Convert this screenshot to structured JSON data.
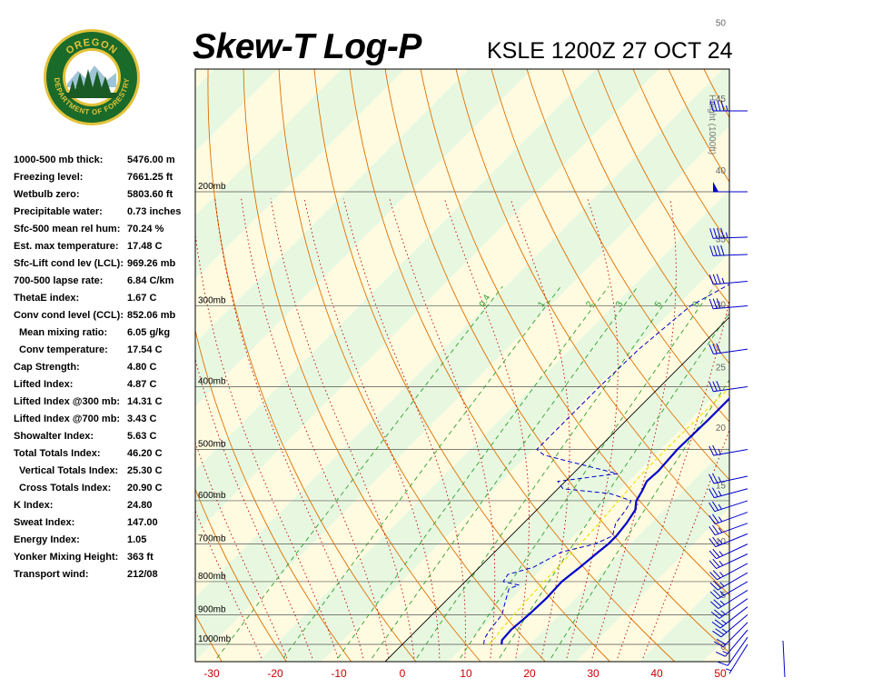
{
  "header": {
    "title": "Skew-T Log-P",
    "station": "KSLE 1200Z 27 OCT 24"
  },
  "logo": {
    "top_text": "OREGON",
    "bottom_text": "DEPARTMENT OF FORESTRY",
    "colors": {
      "ring": "#1a6b2a",
      "gold": "#e2c23a",
      "tree": "#1a5a24"
    }
  },
  "indices": [
    {
      "label": "1000-500 mb thick:",
      "value": "5476.00 m",
      "indent": false
    },
    {
      "label": "Freezing level:",
      "value": "7661.25 ft",
      "indent": false
    },
    {
      "label": "Wetbulb zero:",
      "value": "5803.60 ft",
      "indent": false
    },
    {
      "label": "Precipitable water:",
      "value": "0.73 inches",
      "indent": false
    },
    {
      "label": "Sfc-500 mean rel hum:",
      "value": "70.24 %",
      "indent": false
    },
    {
      "label": "Est. max temperature:",
      "value": "17.48 C",
      "indent": false
    },
    {
      "label": "Sfc-Lift cond lev (LCL):",
      "value": "969.26 mb",
      "indent": false
    },
    {
      "label": "700-500 lapse rate:",
      "value": "6.84 C/km",
      "indent": false
    },
    {
      "label": "ThetaE index:",
      "value": "1.67 C",
      "indent": false
    },
    {
      "label": "Conv cond level (CCL):",
      "value": "852.06 mb",
      "indent": false
    },
    {
      "label": "Mean mixing ratio:",
      "value": "6.05 g/kg",
      "indent": true
    },
    {
      "label": "Conv temperature:",
      "value": "17.54 C",
      "indent": true
    },
    {
      "label": "Cap Strength:",
      "value": "4.80 C",
      "indent": false
    },
    {
      "label": "Lifted Index:",
      "value": "4.87 C",
      "indent": false
    },
    {
      "label": "Lifted Index @300 mb:",
      "value": "14.31 C",
      "indent": false
    },
    {
      "label": "Lifted Index @700 mb:",
      "value": "3.43 C",
      "indent": false
    },
    {
      "label": "Showalter Index:",
      "value": "5.63 C",
      "indent": false
    },
    {
      "label": "Total Totals Index:",
      "value": "46.20 C",
      "indent": false
    },
    {
      "label": "Vertical Totals Index:",
      "value": "25.30 C",
      "indent": true
    },
    {
      "label": "Cross Totals Index:",
      "value": "20.90 C",
      "indent": true
    },
    {
      "label": "K Index:",
      "value": "24.80",
      "indent": false
    },
    {
      "label": "Sweat Index:",
      "value": "147.00",
      "indent": false
    },
    {
      "label": "Energy Index:",
      "value": "1.05",
      "indent": false
    },
    {
      "label": "Yonker Mixing Height:",
      "value": "363 ft",
      "indent": false
    },
    {
      "label": "Transport wind:",
      "value": "212/08",
      "indent": false
    }
  ],
  "chart_data": {
    "type": "line",
    "xlabel": "",
    "ylabel": "",
    "x_ticks": [
      -30,
      -20,
      -10,
      0,
      10,
      20,
      30,
      40,
      50
    ],
    "pressure_labels": [
      {
        "p": 1000,
        "label": "1000mb"
      },
      {
        "p": 900,
        "label": "900mb"
      },
      {
        "p": 800,
        "label": "800mb"
      },
      {
        "p": 700,
        "label": "700mb"
      },
      {
        "p": 600,
        "label": "600mb"
      },
      {
        "p": 500,
        "label": "500mb"
      },
      {
        "p": 400,
        "label": "400mb"
      },
      {
        "p": 300,
        "label": "300mb"
      },
      {
        "p": 200,
        "label": "200mb"
      }
    ],
    "height_axis_label": "Height (1000ft)",
    "height_ticks": [
      0,
      5,
      10,
      15,
      20,
      25,
      30,
      35,
      40,
      45,
      50
    ],
    "mixing_ratio_labels": [
      "0.4",
      "1",
      "2",
      "3",
      "5",
      "8"
    ],
    "colors": {
      "temperature": "#0000cc",
      "dewpoint": "#0000cc",
      "parcel": "#e6e600",
      "dry_adiabat": "#e07000",
      "moist_adiabat": "#c00000",
      "mixing_ratio": "#2ca02c",
      "isobar": "#555555",
      "tick_label": "#cc0000",
      "band_yellow": "#fffbe0",
      "band_green": "#e8f8e0"
    },
    "series": [
      {
        "key": "temperature",
        "points": [
          [
            1000,
            15.6
          ],
          [
            985,
            15.0
          ],
          [
            950,
            14.8
          ],
          [
            925,
            15.0
          ],
          [
            900,
            15.2
          ],
          [
            850,
            15.4
          ],
          [
            800,
            15.2
          ],
          [
            760,
            15.8
          ],
          [
            720,
            16.3
          ],
          [
            700,
            16.6
          ],
          [
            680,
            16.6
          ],
          [
            650,
            16.2
          ],
          [
            620,
            15.5
          ],
          [
            600,
            14.2
          ],
          [
            580,
            13.6
          ],
          [
            560,
            12.8
          ],
          [
            540,
            13.0
          ],
          [
            500,
            12.6
          ],
          [
            450,
            12.8
          ],
          [
            400,
            12.8
          ],
          [
            350,
            12.6
          ],
          [
            300,
            12.4
          ],
          [
            250,
            13.8
          ],
          [
            220,
            15.5
          ],
          [
            200,
            22.7
          ],
          [
            180,
            28.4
          ],
          [
            170,
            34.4
          ]
        ]
      },
      {
        "key": "dewpoint",
        "points": [
          [
            1000,
            12.8
          ],
          [
            980,
            12.0
          ],
          [
            950,
            11.5
          ],
          [
            920,
            11.2
          ],
          [
            900,
            11.0
          ],
          [
            860,
            9.5
          ],
          [
            820,
            8.0
          ],
          [
            810,
            9.0
          ],
          [
            800,
            6.0
          ],
          [
            780,
            5.6
          ],
          [
            760,
            8.5
          ],
          [
            720,
            10.5
          ],
          [
            700,
            14.5
          ],
          [
            680,
            16.0
          ],
          [
            650,
            14.5
          ],
          [
            620,
            14.0
          ],
          [
            600,
            13.4
          ],
          [
            585,
            9.0
          ],
          [
            575,
            0.8
          ],
          [
            560,
            -1.2
          ],
          [
            545,
            7.0
          ],
          [
            510,
            -7.5
          ],
          [
            500,
            -9.5
          ],
          [
            450,
            -9.5
          ],
          [
            400,
            -9.5
          ],
          [
            350,
            -9.2
          ],
          [
            300,
            -7.9
          ],
          [
            260,
            -2.8
          ],
          [
            240,
            -5.0
          ],
          [
            200,
            -4.5
          ],
          [
            180,
            1.2
          ],
          [
            170,
            6.5
          ]
        ]
      },
      {
        "key": "parcel",
        "points": [
          [
            1000,
            13.6
          ],
          [
            970,
            13.5
          ],
          [
            950,
            13.2
          ],
          [
            900,
            12.9
          ],
          [
            850,
            12.6
          ],
          [
            800,
            12.4
          ],
          [
            750,
            12.3
          ],
          [
            700,
            12.2
          ],
          [
            650,
            11.9
          ],
          [
            600,
            11.4
          ],
          [
            550,
            10.9
          ],
          [
            500,
            10.8
          ],
          [
            450,
            10.9
          ],
          [
            400,
            11.1
          ],
          [
            350,
            11.3
          ],
          [
            300,
            11.6
          ]
        ]
      }
    ],
    "wind_barbs": [
      {
        "p": 1000,
        "dir": 212,
        "spd": 8
      },
      {
        "p": 975,
        "dir": 215,
        "spd": 10
      },
      {
        "p": 950,
        "dir": 220,
        "spd": 15
      },
      {
        "p": 925,
        "dir": 225,
        "spd": 20
      },
      {
        "p": 900,
        "dir": 230,
        "spd": 25
      },
      {
        "p": 875,
        "dir": 232,
        "spd": 25
      },
      {
        "p": 850,
        "dir": 235,
        "spd": 25
      },
      {
        "p": 825,
        "dir": 238,
        "spd": 25
      },
      {
        "p": 800,
        "dir": 240,
        "spd": 25
      },
      {
        "p": 775,
        "dir": 240,
        "spd": 25
      },
      {
        "p": 750,
        "dir": 242,
        "spd": 25
      },
      {
        "p": 725,
        "dir": 245,
        "spd": 25
      },
      {
        "p": 700,
        "dir": 245,
        "spd": 25
      },
      {
        "p": 675,
        "dir": 248,
        "spd": 25
      },
      {
        "p": 650,
        "dir": 250,
        "spd": 25
      },
      {
        "p": 625,
        "dir": 250,
        "spd": 25
      },
      {
        "p": 600,
        "dir": 252,
        "spd": 25
      },
      {
        "p": 575,
        "dir": 255,
        "spd": 25
      },
      {
        "p": 550,
        "dir": 258,
        "spd": 25
      },
      {
        "p": 500,
        "dir": 260,
        "spd": 25
      },
      {
        "p": 400,
        "dir": 262,
        "spd": 30
      },
      {
        "p": 350,
        "dir": 262,
        "spd": 30
      },
      {
        "p": 300,
        "dir": 265,
        "spd": 30
      },
      {
        "p": 275,
        "dir": 265,
        "spd": 35
      },
      {
        "p": 250,
        "dir": 268,
        "spd": 40
      },
      {
        "p": 235,
        "dir": 268,
        "spd": 45
      },
      {
        "p": 200,
        "dir": 270,
        "spd": 50
      },
      {
        "p": 150,
        "dir": 270,
        "spd": 45
      }
    ]
  }
}
